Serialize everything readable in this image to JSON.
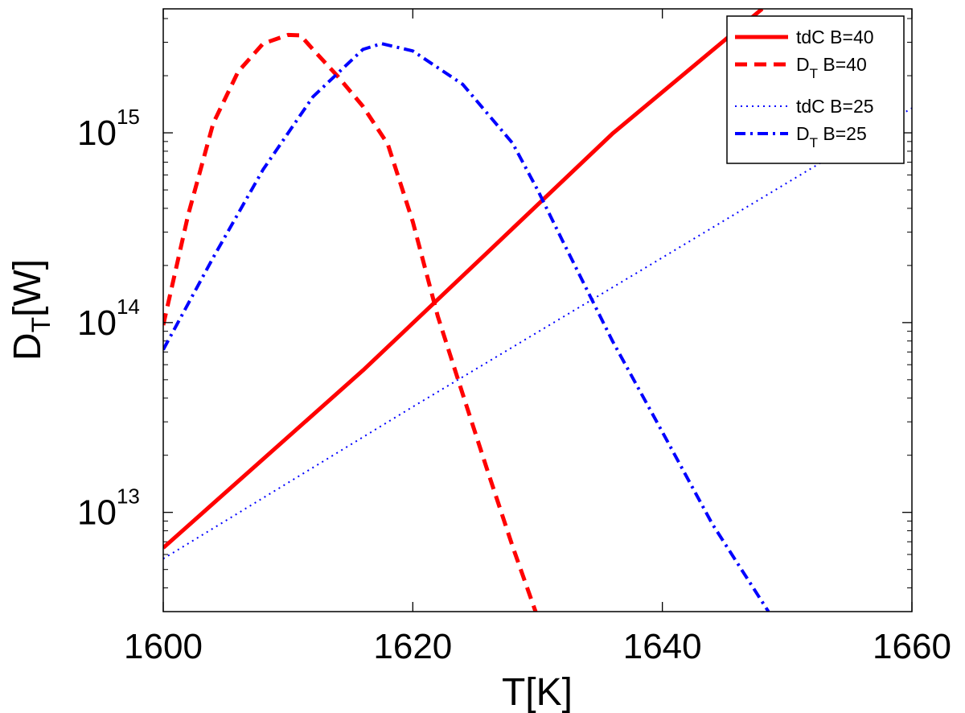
{
  "chart_data": {
    "type": "line",
    "title": "",
    "xlabel": "T[K]",
    "ylabel": "D_T[W]",
    "xlim": [
      1600,
      1660
    ],
    "ylim": [
      3000000000000.0,
      4500000000000000.0
    ],
    "yscale": "log",
    "x_ticks": [
      {
        "value": 1600,
        "label": "1600"
      },
      {
        "value": 1620,
        "label": "1620"
      },
      {
        "value": 1640,
        "label": "1640"
      },
      {
        "value": 1660,
        "label": "1660"
      }
    ],
    "y_ticks": [
      {
        "value": 10000000000000.0,
        "base": "10",
        "exp": "13"
      },
      {
        "value": 100000000000000.0,
        "base": "10",
        "exp": "14"
      },
      {
        "value": 1000000000000000.0,
        "base": "10",
        "exp": "15"
      }
    ],
    "series": [
      {
        "name": "tdC B=40",
        "label_main": "tdC B=40",
        "label_sub": "",
        "label_rest": "",
        "color": "#ff0000",
        "style": "solid",
        "points": [
          [
            1600,
            6500000000000.0
          ],
          [
            1616,
            56000000000000.0
          ],
          [
            1626,
            235000000000000.0
          ],
          [
            1636,
            990000000000000.0
          ],
          [
            1648,
            4500000000000000.0
          ]
        ]
      },
      {
        "name": "D_T B=40",
        "label_main": "D",
        "label_sub": "T",
        "label_rest": " B=40",
        "color": "#ff0000",
        "style": "dashed",
        "points": [
          [
            1600,
            97000000000000.0
          ],
          [
            1602,
            370000000000000.0
          ],
          [
            1604,
            1120000000000000.0
          ],
          [
            1606,
            2100000000000000.0
          ],
          [
            1608,
            2950000000000000.0
          ],
          [
            1610,
            3280000000000000.0
          ],
          [
            1611,
            3260000000000000.0
          ],
          [
            1612,
            2750000000000000.0
          ],
          [
            1614,
            1980000000000000.0
          ],
          [
            1616,
            1380000000000000.0
          ],
          [
            1618,
            870000000000000.0
          ],
          [
            1620,
            340000000000000.0
          ],
          [
            1622,
            108000000000000.0
          ],
          [
            1624,
            42000000000000.0
          ],
          [
            1626,
            16500000000000.0
          ],
          [
            1628,
            6600000000000.0
          ],
          [
            1630,
            2800000000000.0
          ]
        ]
      },
      {
        "name": "tdC B=25",
        "label_main": "tdC B=25",
        "label_sub": "",
        "label_rest": "",
        "color": "#0000ff",
        "style": "dotted",
        "points": [
          [
            1600,
            5700000000000.0
          ],
          [
            1620,
            36000000000000.0
          ],
          [
            1640,
            220000000000000.0
          ],
          [
            1660,
            1350000000000000.0
          ]
        ]
      },
      {
        "name": "D_T B=25",
        "label_main": "D",
        "label_sub": "T",
        "label_rest": " B=25",
        "color": "#0000ff",
        "style": "dashdot",
        "points": [
          [
            1600,
            72000000000000.0
          ],
          [
            1604,
            220000000000000.0
          ],
          [
            1608,
            640000000000000.0
          ],
          [
            1612,
            1550000000000000.0
          ],
          [
            1616,
            2750000000000000.0
          ],
          [
            1617.5,
            2950000000000000.0
          ],
          [
            1620,
            2700000000000000.0
          ],
          [
            1624,
            1800000000000000.0
          ],
          [
            1628,
            880000000000000.0
          ],
          [
            1630,
            500000000000000.0
          ],
          [
            1632,
            270000000000000.0
          ],
          [
            1636,
            80000000000000.0
          ],
          [
            1640,
            26500000000000.0
          ],
          [
            1644,
            8700000000000.0
          ],
          [
            1648.5,
            3000000000000.0
          ]
        ]
      }
    ]
  }
}
